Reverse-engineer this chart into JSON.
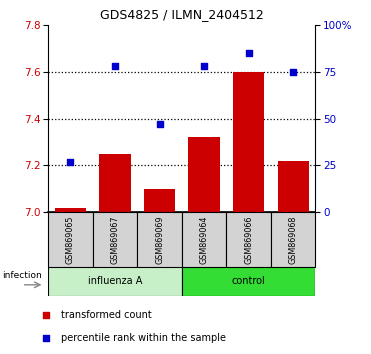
{
  "title": "GDS4825 / ILMN_2404512",
  "samples": [
    "GSM869065",
    "GSM869067",
    "GSM869069",
    "GSM869064",
    "GSM869066",
    "GSM869068"
  ],
  "transformed_count": [
    7.02,
    7.25,
    7.1,
    7.32,
    7.6,
    7.22
  ],
  "percentile_rank": [
    27,
    78,
    47,
    78,
    85,
    75
  ],
  "ylim_left": [
    7.0,
    7.8
  ],
  "ylim_right": [
    0,
    100
  ],
  "yticks_left": [
    7.0,
    7.2,
    7.4,
    7.6,
    7.8
  ],
  "yticks_right": [
    0,
    25,
    50,
    75,
    100
  ],
  "ytick_labels_right": [
    "0",
    "25",
    "50",
    "75",
    "100%"
  ],
  "bar_color": "#CC0000",
  "dot_color": "#0000CC",
  "legend_bar": "transformed count",
  "legend_dot": "percentile rank within the sample",
  "bar_width": 0.7,
  "background_color": "#ffffff",
  "sample_box_color": "#d3d3d3",
  "influenza_color": "#c8f0c8",
  "control_color": "#33dd33",
  "infection_label": "infection"
}
